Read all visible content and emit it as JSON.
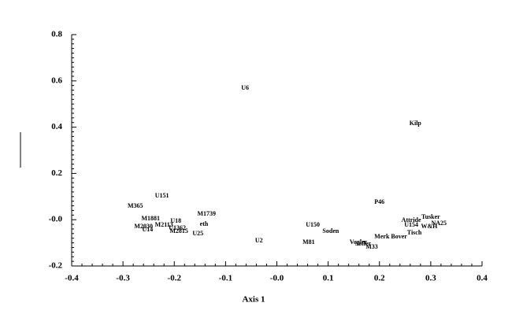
{
  "chart_data": {
    "type": "scatter",
    "xlabel": "Axis 1",
    "labels": [
      "U6",
      "Kilp",
      "U151",
      "M365",
      "P46",
      "M1739",
      "M1881",
      "U18",
      "eth",
      "Tusker",
      "Attride",
      "NA25",
      "U154",
      "W&H",
      "U150",
      "M2030",
      "M2113",
      "U1362",
      "M2815",
      "U14",
      "U25",
      "Soden",
      "Tisch",
      "Merk Bover",
      "U2",
      "M81",
      "Vogler",
      "Soller",
      "M33"
    ],
    "x": [
      -0.062,
      0.27,
      -0.224,
      -0.276,
      0.2,
      -0.137,
      -0.246,
      -0.197,
      -0.142,
      0.3,
      0.262,
      0.316,
      0.262,
      0.297,
      0.07,
      -0.26,
      -0.22,
      -0.194,
      -0.191,
      -0.252,
      -0.154,
      0.105,
      0.268,
      0.222,
      -0.035,
      0.062,
      0.159,
      0.168,
      0.185
    ],
    "values": [
      0.568,
      0.415,
      0.102,
      0.058,
      0.075,
      0.024,
      0.003,
      -0.007,
      -0.02,
      0.01,
      -0.003,
      -0.017,
      -0.024,
      -0.031,
      -0.024,
      -0.031,
      -0.024,
      -0.037,
      -0.051,
      -0.044,
      -0.061,
      -0.051,
      -0.058,
      -0.075,
      -0.092,
      -0.099,
      -0.099,
      -0.105,
      -0.119
    ],
    "xlim": [
      -0.4,
      0.4
    ],
    "ylim": [
      -0.2,
      0.8
    ],
    "xticks": [
      -0.4,
      -0.3,
      -0.2,
      -0.1,
      {
        "value": 0,
        "label": "-0.0"
      },
      0.1,
      0.2,
      0.3,
      0.4
    ],
    "yticks": [
      -0.2,
      {
        "value": 0,
        "label": "-0.0"
      },
      0.2,
      0.4,
      0.6,
      0.8
    ]
  }
}
